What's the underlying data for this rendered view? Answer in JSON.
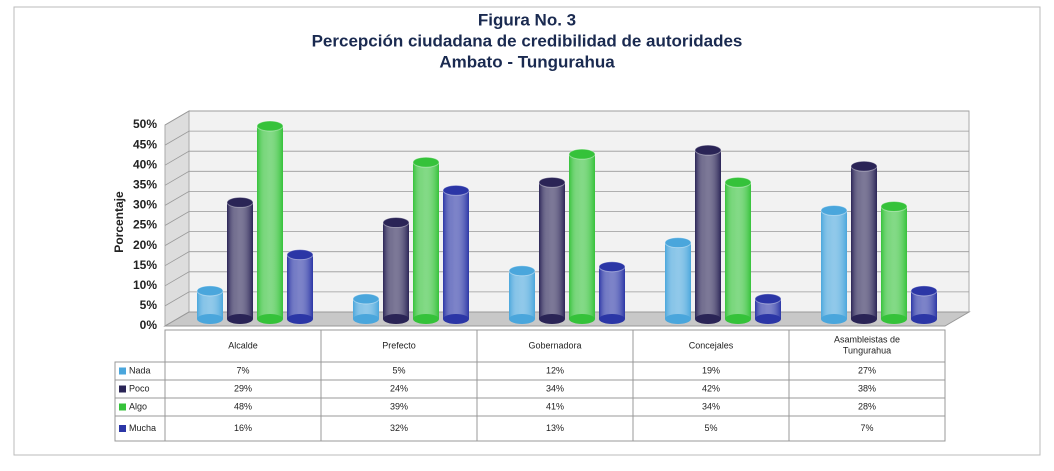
{
  "chart_data": {
    "type": "bar",
    "title": "Figura No. 3",
    "subtitle": "Percepción ciudadana de credibilidad de autoridades",
    "subtitle2": "Ambato - Tungurahua",
    "y_label": "Porcentaje",
    "categories": [
      "Alcalde",
      "Prefecto",
      "Gobernadora",
      "Concejales",
      "Asambleistas de Tungurahua"
    ],
    "series": [
      {
        "name": "Nada",
        "color": "#4aa6dc",
        "values": [
          7,
          5,
          12,
          19,
          27
        ],
        "value_labels": [
          "7%",
          "5%",
          "12%",
          "19%",
          "27%"
        ]
      },
      {
        "name": "Poco",
        "color": "#2a2456",
        "values": [
          29,
          24,
          34,
          42,
          38
        ],
        "value_labels": [
          "29%",
          "24%",
          "34%",
          "42%",
          "38%"
        ]
      },
      {
        "name": "Algo",
        "color": "#35c23a",
        "values": [
          48,
          39,
          41,
          34,
          28
        ],
        "value_labels": [
          "48%",
          "39%",
          "41%",
          "34%",
          "28%"
        ]
      },
      {
        "name": "Mucha",
        "color": "#2b36a6",
        "values": [
          16,
          32,
          13,
          5,
          7
        ],
        "value_labels": [
          "16%",
          "32%",
          "13%",
          "5%",
          "7%"
        ]
      }
    ],
    "ylim": [
      0,
      50
    ],
    "yticks": [
      {
        "value": 0,
        "label": "0%"
      },
      {
        "value": 5,
        "label": "5%"
      },
      {
        "value": 10,
        "label": "10%"
      },
      {
        "value": 15,
        "label": "15%"
      },
      {
        "value": 20,
        "label": "20%"
      },
      {
        "value": 25,
        "label": "25%"
      },
      {
        "value": 30,
        "label": "30%"
      },
      {
        "value": 35,
        "label": "35%"
      },
      {
        "value": 40,
        "label": "40%"
      },
      {
        "value": 45,
        "label": "45%"
      },
      {
        "value": 50,
        "label": "50%"
      }
    ],
    "grid": true
  }
}
